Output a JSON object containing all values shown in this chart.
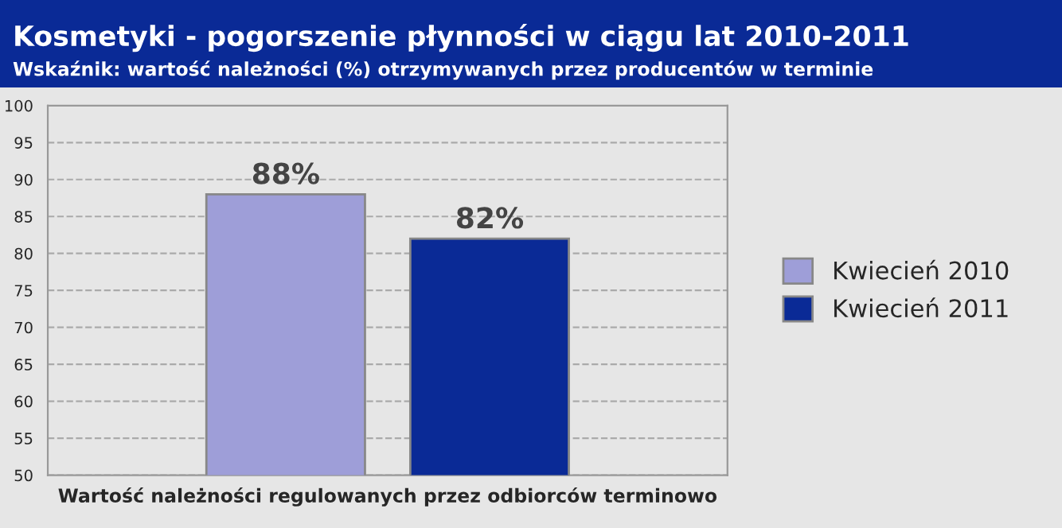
{
  "chart_data": {
    "type": "bar",
    "title": "Kosmetyki - pogorszenie płynności w ciągu lat 2010-2011",
    "subtitle": "Wskaźnik: wartość należności (%) otrzymywanych przez producentów w terminie",
    "xlabel": "Wartość należności regulowanych przez odbiorców terminowo",
    "categories": [
      null
    ],
    "series": [
      {
        "name": "Kwiecień 2010",
        "color": "#9e9ed8",
        "values": [
          88
        ],
        "value_labels": [
          "88%"
        ]
      },
      {
        "name": "Kwiecień 2011",
        "color": "#0a2a96",
        "values": [
          82
        ],
        "value_labels": [
          "82%"
        ]
      }
    ],
    "ylim": [
      50,
      100
    ],
    "yticks": [
      50,
      55,
      60,
      65,
      70,
      75,
      80,
      85,
      90,
      95,
      100
    ],
    "grid": "y",
    "legend": "right"
  }
}
